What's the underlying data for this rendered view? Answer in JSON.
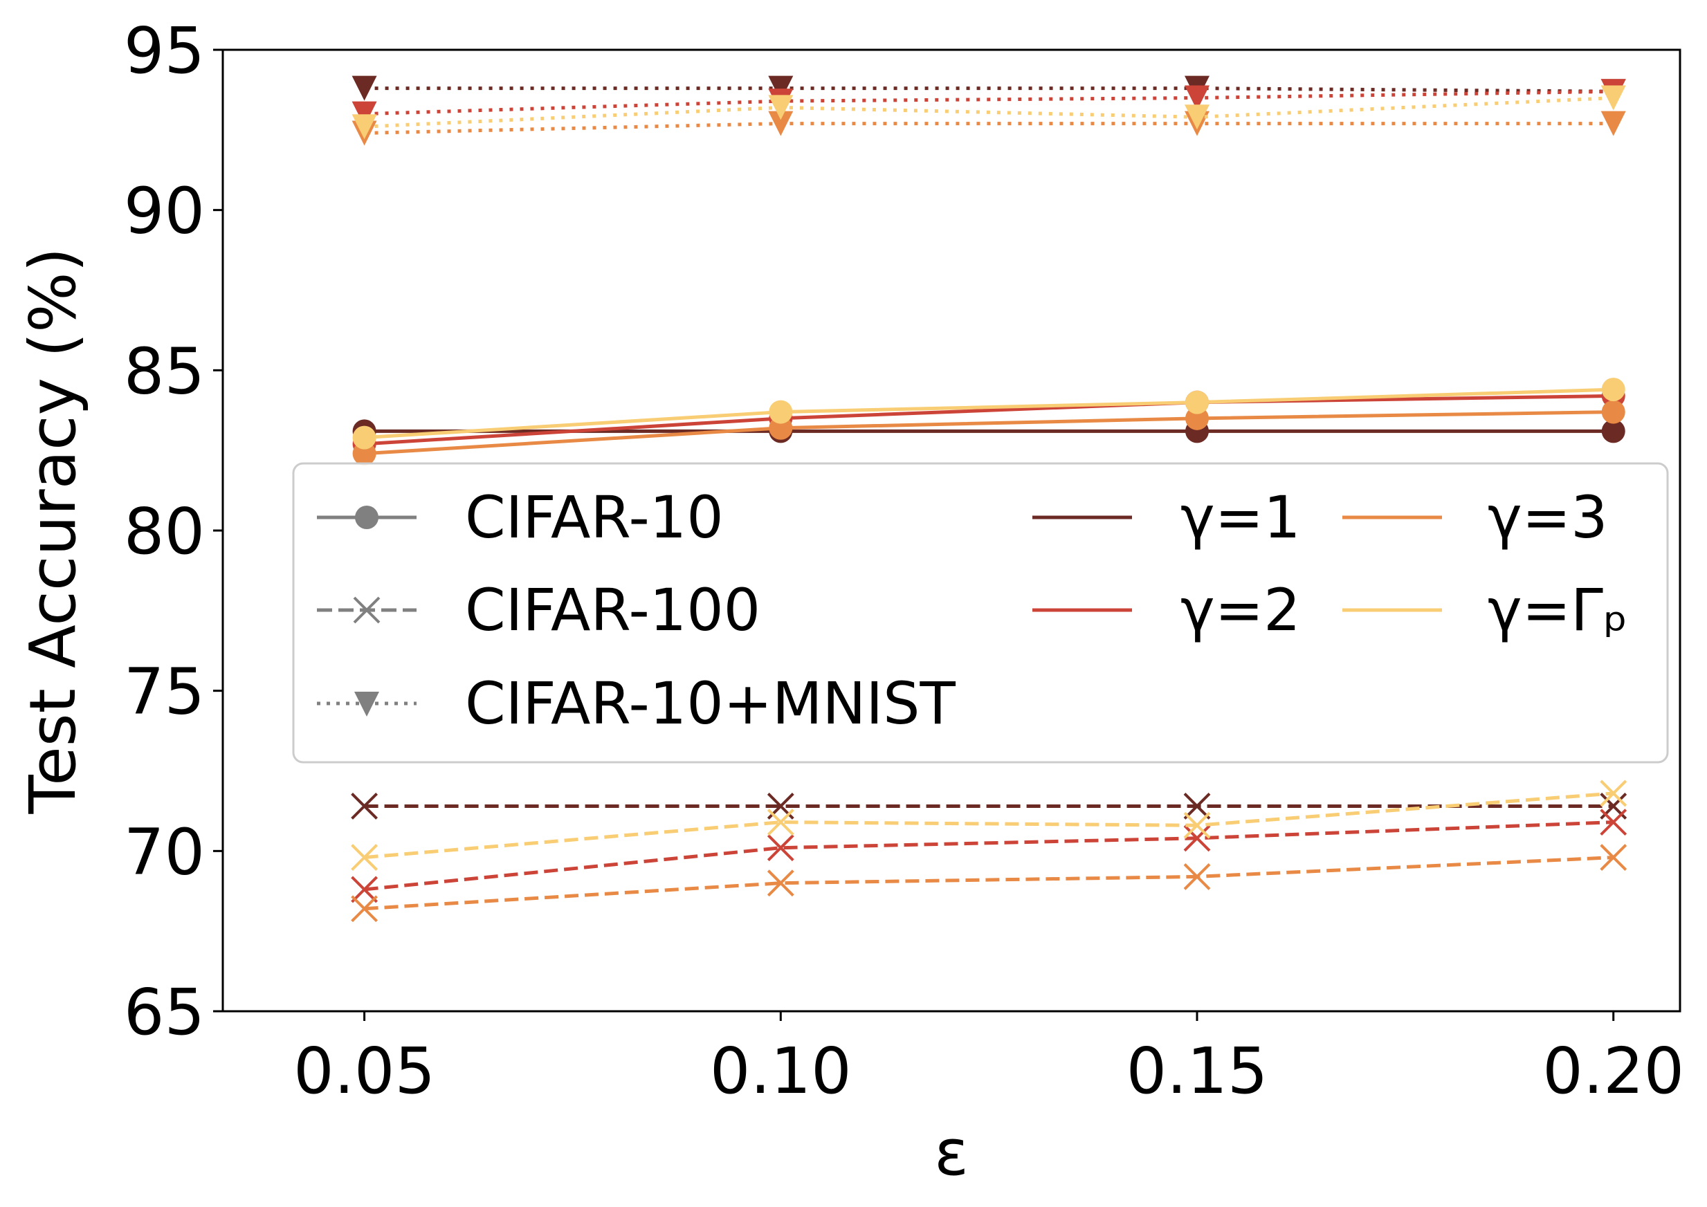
{
  "chart_data": {
    "type": "line",
    "title": "",
    "xlabel": "ε",
    "ylabel": "Test Accuracy (%)",
    "x": [
      0.05,
      0.1,
      0.15,
      0.2
    ],
    "x_tick_labels": [
      "0.05",
      "0.10",
      "0.15",
      "0.20"
    ],
    "xlim": [
      0.033,
      0.208
    ],
    "ylim": [
      65,
      95
    ],
    "y_ticks": [
      65,
      70,
      75,
      80,
      85,
      90,
      95
    ],
    "y_tick_labels": [
      "65",
      "70",
      "75",
      "80",
      "85",
      "90",
      "95"
    ],
    "grid": false,
    "legend_position": "center-left",
    "datasets": [
      {
        "name": "CIFAR-10",
        "linestyle": "solid",
        "marker": "circle"
      },
      {
        "name": "CIFAR-100",
        "linestyle": "dashed",
        "marker": "x"
      },
      {
        "name": "CIFAR-10+MNIST",
        "linestyle": "dotted",
        "marker": "triangle-down"
      }
    ],
    "gammas": [
      {
        "name": "γ=1",
        "color": "#6b2a23"
      },
      {
        "name": "γ=2",
        "color": "#cc4438"
      },
      {
        "name": "γ=3",
        "color": "#e88a45"
      },
      {
        "name": "γ=Γₚ",
        "color": "#f8cd73"
      }
    ],
    "legend_marker_color": "#808080",
    "series": [
      {
        "name": "CIFAR-10, γ=1",
        "dataset": 0,
        "gamma": 0,
        "values": [
          83.1,
          83.1,
          83.1,
          83.1
        ]
      },
      {
        "name": "CIFAR-10, γ=2",
        "dataset": 0,
        "gamma": 1,
        "values": [
          82.7,
          83.5,
          84.0,
          84.2
        ]
      },
      {
        "name": "CIFAR-10, γ=3",
        "dataset": 0,
        "gamma": 2,
        "values": [
          82.4,
          83.2,
          83.5,
          83.7
        ]
      },
      {
        "name": "CIFAR-10, γ=Γₚ",
        "dataset": 0,
        "gamma": 3,
        "values": [
          82.9,
          83.7,
          84.0,
          84.4
        ]
      },
      {
        "name": "CIFAR-100, γ=1",
        "dataset": 1,
        "gamma": 0,
        "values": [
          71.4,
          71.4,
          71.4,
          71.4
        ]
      },
      {
        "name": "CIFAR-100, γ=2",
        "dataset": 1,
        "gamma": 1,
        "values": [
          68.8,
          70.1,
          70.4,
          70.9
        ]
      },
      {
        "name": "CIFAR-100, γ=3",
        "dataset": 1,
        "gamma": 2,
        "values": [
          68.2,
          69.0,
          69.2,
          69.8
        ]
      },
      {
        "name": "CIFAR-100, γ=Γₚ",
        "dataset": 1,
        "gamma": 3,
        "values": [
          69.8,
          70.9,
          70.8,
          71.8
        ]
      },
      {
        "name": "CIFAR-10+MNIST, γ=1",
        "dataset": 2,
        "gamma": 0,
        "values": [
          93.8,
          93.8,
          93.8,
          93.7
        ]
      },
      {
        "name": "CIFAR-10+MNIST, γ=2",
        "dataset": 2,
        "gamma": 1,
        "values": [
          93.0,
          93.4,
          93.5,
          93.7
        ]
      },
      {
        "name": "CIFAR-10+MNIST, γ=3",
        "dataset": 2,
        "gamma": 2,
        "values": [
          92.4,
          92.7,
          92.7,
          92.7
        ]
      },
      {
        "name": "CIFAR-10+MNIST, γ=Γₚ",
        "dataset": 2,
        "gamma": 3,
        "values": [
          92.6,
          93.2,
          92.9,
          93.5
        ]
      }
    ]
  }
}
